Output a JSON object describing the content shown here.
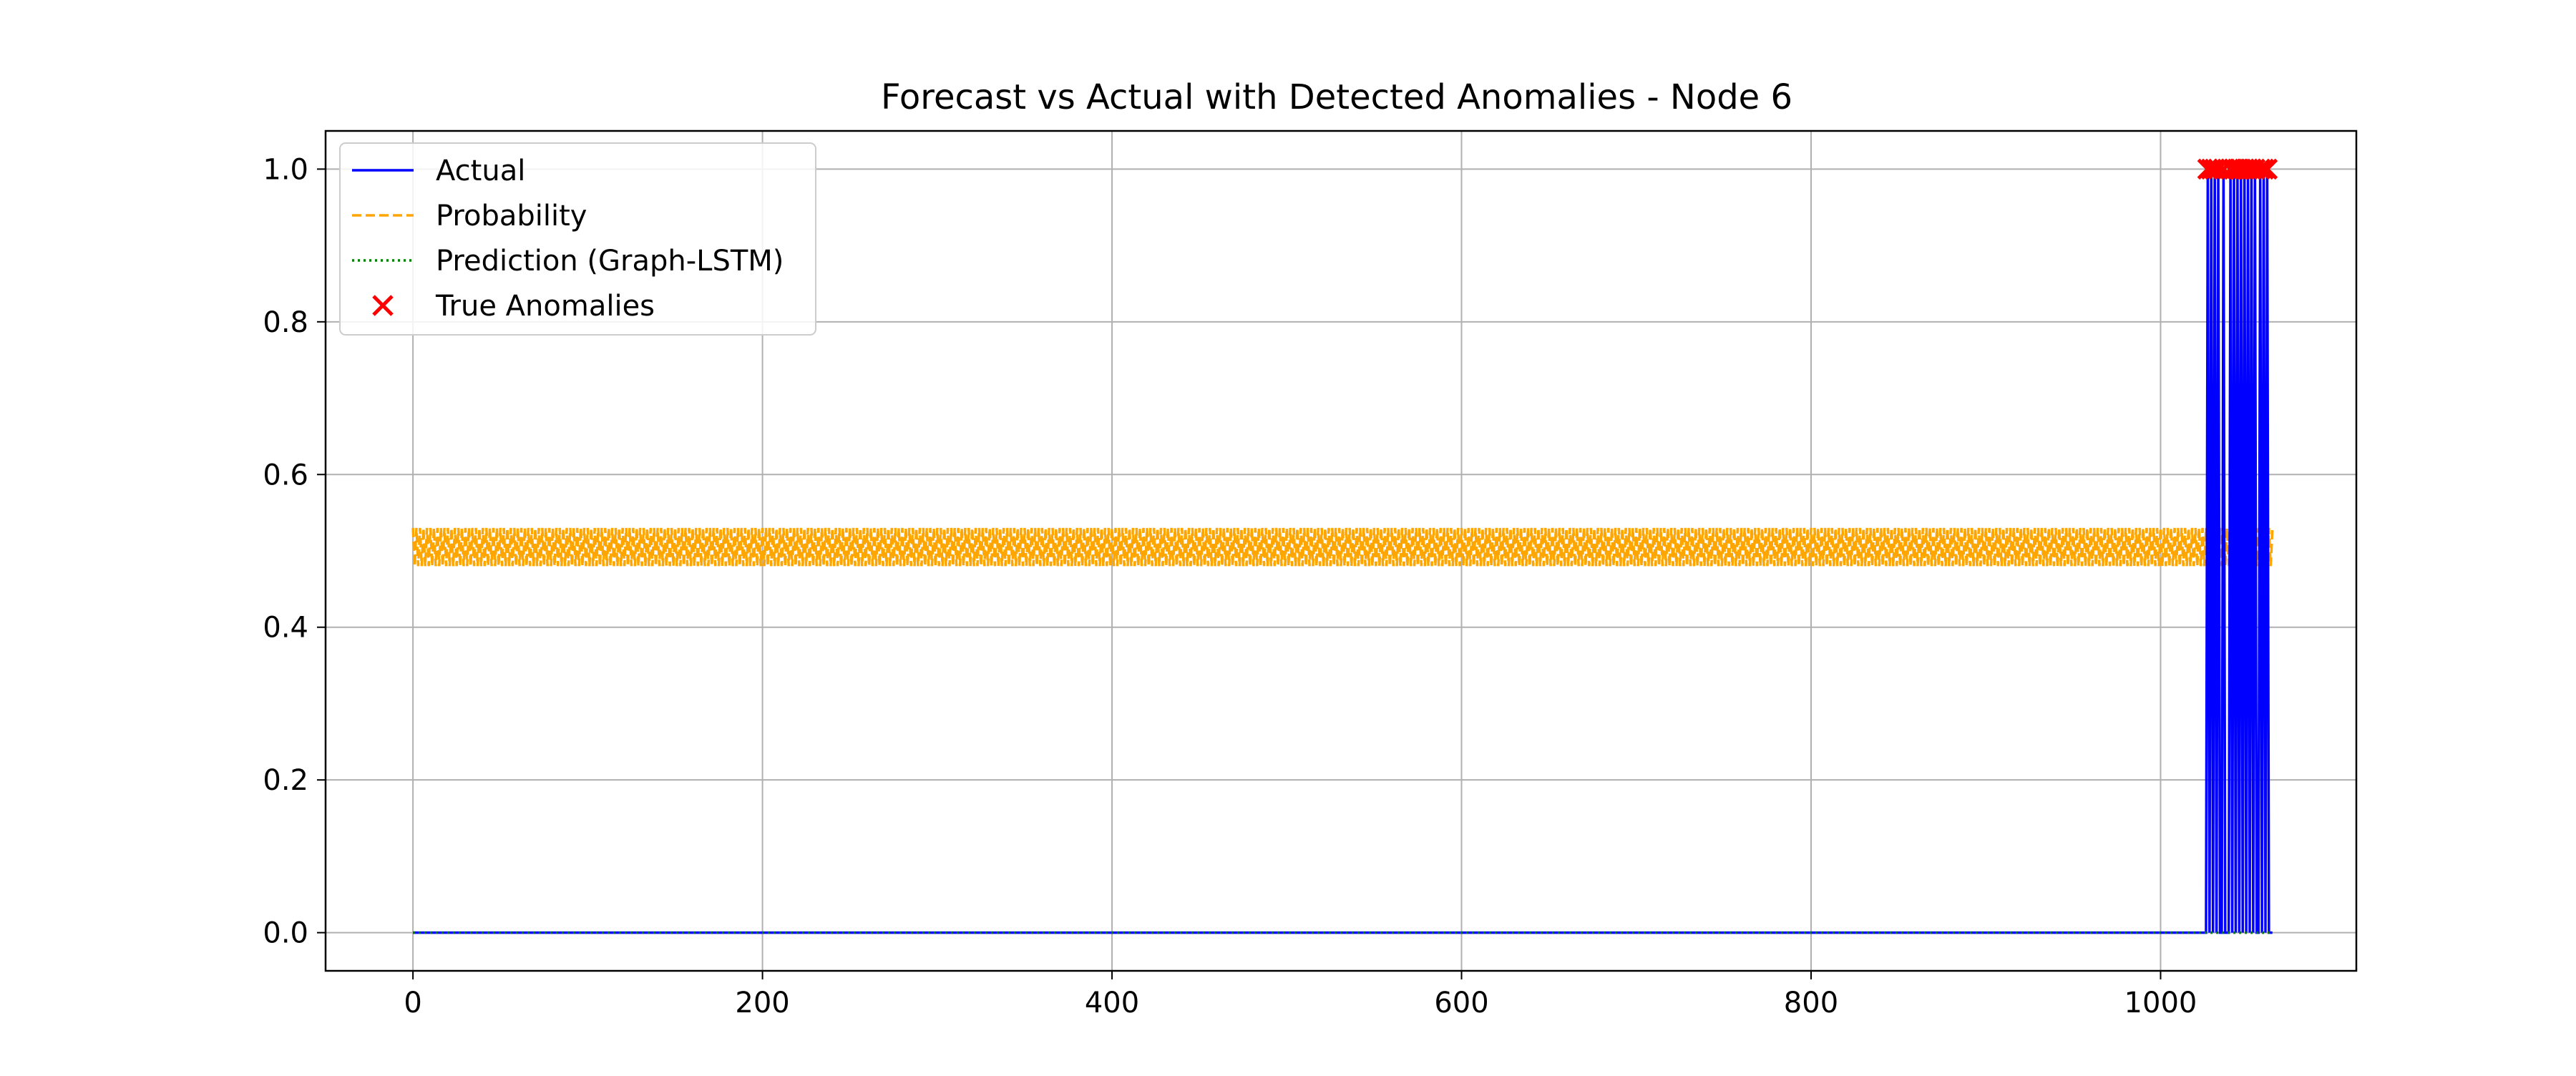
{
  "chart_data": {
    "type": "line",
    "title": "Forecast vs Actual with Detected Anomalies - Node 6",
    "xlabel": "",
    "ylabel": "",
    "xlim": [
      -50,
      1112
    ],
    "ylim": [
      -0.05,
      1.05
    ],
    "x_ticks": [
      0,
      200,
      400,
      600,
      800,
      1000
    ],
    "x_tick_labels": [
      "0",
      "200",
      "400",
      "600",
      "800",
      "1000"
    ],
    "y_ticks": [
      0.0,
      0.2,
      0.4,
      0.6,
      0.8,
      1.0
    ],
    "y_tick_labels": [
      "0.0",
      "0.2",
      "0.4",
      "0.6",
      "0.8",
      "1.0"
    ],
    "grid": true,
    "legend_position": "top-left",
    "n_points": 1065,
    "probability_band": [
      0.48,
      0.53
    ],
    "anomaly_x": [
      1027,
      1029,
      1031,
      1033,
      1036,
      1040,
      1042,
      1044,
      1046,
      1048,
      1050,
      1052,
      1054,
      1057,
      1059,
      1061
    ],
    "series": [
      {
        "name": "Actual",
        "color": "#0000ff",
        "style": "solid"
      },
      {
        "name": "Probability",
        "color": "#ffa500",
        "style": "dashed"
      },
      {
        "name": "Prediction (Graph-LSTM)",
        "color": "#008000",
        "style": "dotted"
      },
      {
        "name": "True Anomalies",
        "color": "#ff0000",
        "style": "marker-x"
      }
    ]
  }
}
